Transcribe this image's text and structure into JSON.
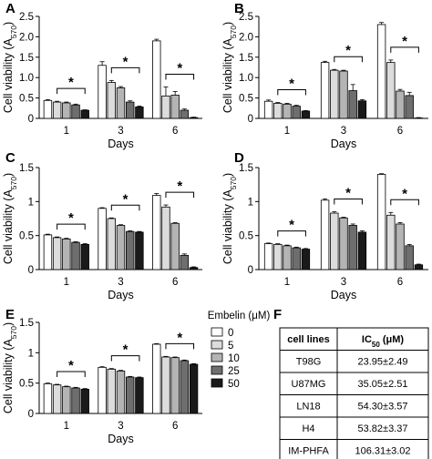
{
  "legend": {
    "title": "Embelin (μM)",
    "entries": [
      "0",
      "5",
      "10",
      "25",
      "50"
    ]
  },
  "colors": {
    "dose_fills": [
      "#ffffff",
      "#dcdcdc",
      "#b4b4b4",
      "#6e6e6e",
      "#1a1a1a"
    ],
    "outline": "#000000"
  },
  "chart_data": [
    {
      "panel": "A",
      "type": "bar",
      "categories": [
        "1",
        "3",
        "6"
      ],
      "xlabel": "Days",
      "ylabel": "Cell viability (A570)",
      "ylim": [
        0,
        2.5
      ],
      "yticks": [
        "0",
        "0.5",
        "1.0",
        "1.5",
        "2.0",
        "2.5"
      ],
      "series": [
        {
          "name": "0",
          "values": [
            0.44,
            1.3,
            1.9
          ],
          "errors": [
            0.02,
            0.09,
            0.04
          ]
        },
        {
          "name": "5",
          "values": [
            0.4,
            0.88,
            0.55
          ],
          "errors": [
            0.02,
            0.05,
            0.22
          ]
        },
        {
          "name": "10",
          "values": [
            0.38,
            0.75,
            0.57
          ],
          "errors": [
            0.02,
            0.03,
            0.09
          ]
        },
        {
          "name": "25",
          "values": [
            0.33,
            0.4,
            0.2
          ],
          "errors": [
            0.02,
            0.03,
            0.03
          ]
        },
        {
          "name": "50",
          "values": [
            0.2,
            0.28,
            0.02
          ],
          "errors": [
            0.01,
            0.02,
            0.01
          ]
        }
      ],
      "significance": [
        {
          "group": 0,
          "label": "*"
        },
        {
          "group": 1,
          "label": "*"
        },
        {
          "group": 2,
          "label": "*"
        }
      ]
    },
    {
      "panel": "B",
      "type": "bar",
      "categories": [
        "1",
        "3",
        "6"
      ],
      "xlabel": "Days",
      "ylabel": "Cell viability (A570)",
      "ylim": [
        0,
        2.5
      ],
      "yticks": [
        "0",
        "0.5",
        "1.0",
        "1.5",
        "2.0",
        "2.5"
      ],
      "series": [
        {
          "name": "0",
          "values": [
            0.42,
            1.37,
            2.3
          ],
          "errors": [
            0.03,
            0.03,
            0.05
          ]
        },
        {
          "name": "5",
          "values": [
            0.37,
            1.18,
            1.37
          ],
          "errors": [
            0.02,
            0.02,
            0.06
          ]
        },
        {
          "name": "10",
          "values": [
            0.35,
            1.16,
            0.67
          ],
          "errors": [
            0.02,
            0.02,
            0.04
          ]
        },
        {
          "name": "25",
          "values": [
            0.3,
            0.68,
            0.56
          ],
          "errors": [
            0.02,
            0.15,
            0.08
          ]
        },
        {
          "name": "50",
          "values": [
            0.18,
            0.43,
            0.01
          ],
          "errors": [
            0.01,
            0.03,
            0.01
          ]
        }
      ],
      "significance": [
        {
          "group": 0,
          "label": "*"
        },
        {
          "group": 1,
          "label": "*"
        },
        {
          "group": 2,
          "label": "*"
        }
      ]
    },
    {
      "panel": "C",
      "type": "bar",
      "categories": [
        "1",
        "3",
        "6"
      ],
      "xlabel": "Days",
      "ylabel": "Cell viability (A570)",
      "ylim": [
        0,
        1.5
      ],
      "yticks": [
        "0",
        "0.5",
        "1",
        "1.5"
      ],
      "series": [
        {
          "name": "0",
          "values": [
            0.51,
            0.9,
            1.09
          ],
          "errors": [
            0.01,
            0.01,
            0.03
          ]
        },
        {
          "name": "5",
          "values": [
            0.47,
            0.75,
            0.92
          ],
          "errors": [
            0.01,
            0.01,
            0.03
          ]
        },
        {
          "name": "10",
          "values": [
            0.45,
            0.65,
            0.68
          ],
          "errors": [
            0.01,
            0.01,
            0.01
          ]
        },
        {
          "name": "25",
          "values": [
            0.4,
            0.56,
            0.21
          ],
          "errors": [
            0.01,
            0.01,
            0.02
          ]
        },
        {
          "name": "50",
          "values": [
            0.37,
            0.55,
            0.03
          ],
          "errors": [
            0.01,
            0.01,
            0.01
          ]
        }
      ],
      "significance": [
        {
          "group": 0,
          "label": "*"
        },
        {
          "group": 1,
          "label": "*"
        },
        {
          "group": 2,
          "label": "*"
        }
      ]
    },
    {
      "panel": "D",
      "type": "bar",
      "categories": [
        "1",
        "3",
        "6"
      ],
      "xlabel": "Days",
      "ylabel": "Cell viability (A570)",
      "ylim": [
        0,
        1.5
      ],
      "yticks": [
        "0",
        "0.5",
        "1",
        "1.5"
      ],
      "series": [
        {
          "name": "0",
          "values": [
            0.38,
            1.02,
            1.4
          ],
          "errors": [
            0.01,
            0.02,
            0.01
          ]
        },
        {
          "name": "5",
          "values": [
            0.37,
            0.83,
            0.8
          ],
          "errors": [
            0.01,
            0.02,
            0.04
          ]
        },
        {
          "name": "10",
          "values": [
            0.35,
            0.76,
            0.67
          ],
          "errors": [
            0.01,
            0.01,
            0.02
          ]
        },
        {
          "name": "25",
          "values": [
            0.32,
            0.65,
            0.35
          ],
          "errors": [
            0.01,
            0.02,
            0.02
          ]
        },
        {
          "name": "50",
          "values": [
            0.3,
            0.55,
            0.07
          ],
          "errors": [
            0.01,
            0.02,
            0.01
          ]
        }
      ],
      "significance": [
        {
          "group": 0,
          "label": "*"
        },
        {
          "group": 1,
          "label": "*"
        },
        {
          "group": 2,
          "label": "*"
        }
      ]
    },
    {
      "panel": "E",
      "type": "bar",
      "categories": [
        "1",
        "3",
        "6"
      ],
      "xlabel": "Days",
      "ylabel": "Cell viability (A570)",
      "ylim": [
        0,
        1.5
      ],
      "yticks": [
        "0",
        "0.5",
        "1",
        "1.5"
      ],
      "series": [
        {
          "name": "0",
          "values": [
            0.49,
            0.76,
            1.14
          ],
          "errors": [
            0.01,
            0.01,
            0.01
          ]
        },
        {
          "name": "5",
          "values": [
            0.47,
            0.73,
            0.93
          ],
          "errors": [
            0.01,
            0.01,
            0.01
          ]
        },
        {
          "name": "10",
          "values": [
            0.44,
            0.7,
            0.92
          ],
          "errors": [
            0.01,
            0.01,
            0.01
          ]
        },
        {
          "name": "25",
          "values": [
            0.42,
            0.6,
            0.87
          ],
          "errors": [
            0.01,
            0.01,
            0.01
          ]
        },
        {
          "name": "50",
          "values": [
            0.4,
            0.59,
            0.81
          ],
          "errors": [
            0.01,
            0.01,
            0.01
          ]
        }
      ],
      "significance": [
        {
          "group": 0,
          "label": "*"
        },
        {
          "group": 1,
          "label": "*"
        },
        {
          "group": 2,
          "label": "*"
        }
      ]
    },
    {
      "panel": "F",
      "type": "table",
      "columns": [
        "cell lines",
        "IC50 (μM)"
      ],
      "rows": [
        [
          "T98G",
          "23.95±2.49"
        ],
        [
          "U87MG",
          "35.05±2.51"
        ],
        [
          "LN18",
          "54.30±3.57"
        ],
        [
          "H4",
          "53.82±3.37"
        ],
        [
          "IM-PHFA",
          "106.31±3.02"
        ]
      ]
    }
  ]
}
